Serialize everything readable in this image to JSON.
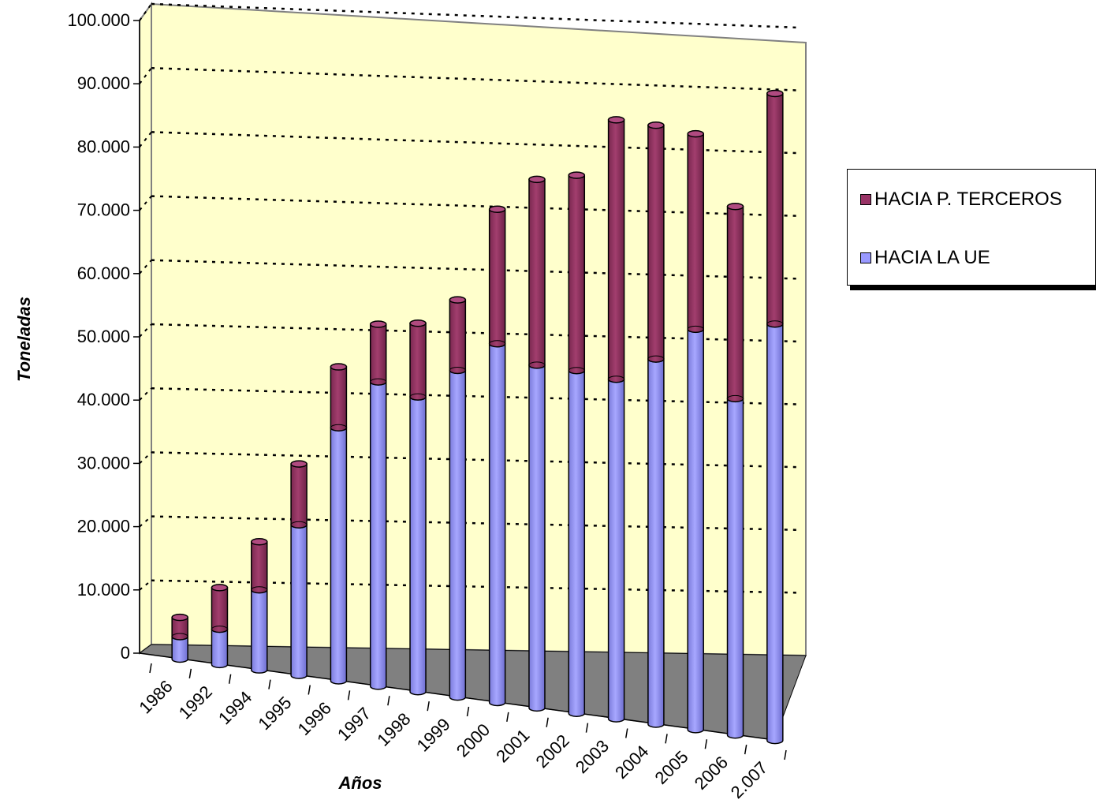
{
  "chart_data": {
    "type": "bar",
    "stacked": true,
    "three_d": true,
    "xlabel": "Años",
    "ylabel": "Toneladas",
    "ylim": [
      0,
      100000
    ],
    "yticks": [
      "0",
      "10.000",
      "20.000",
      "30.000",
      "40.000",
      "50.000",
      "60.000",
      "70.000",
      "80.000",
      "90.000",
      "100.000"
    ],
    "categories": [
      "1986",
      "1992",
      "1994",
      "1995",
      "1996",
      "1997",
      "1998",
      "1999",
      "2000",
      "2001",
      "2002",
      "2003",
      "2004",
      "2005",
      "2006",
      "2.007"
    ],
    "series": [
      {
        "name": "HACIA LA UE",
        "color": "#9999ff",
        "values": [
          3500,
          5500,
          12500,
          23500,
          39500,
          47500,
          46000,
          51000,
          56000,
          53500,
          53500,
          53000,
          57000,
          62500,
          52500,
          65000
        ]
      },
      {
        "name": "HACIA P. TERCEROS",
        "color": "#993366",
        "values": [
          3000,
          6500,
          7500,
          9500,
          9500,
          9000,
          11500,
          11000,
          21000,
          29000,
          30500,
          40500,
          36500,
          30500,
          30000,
          36000
        ]
      }
    ],
    "grid": true,
    "legend_position": "right"
  }
}
